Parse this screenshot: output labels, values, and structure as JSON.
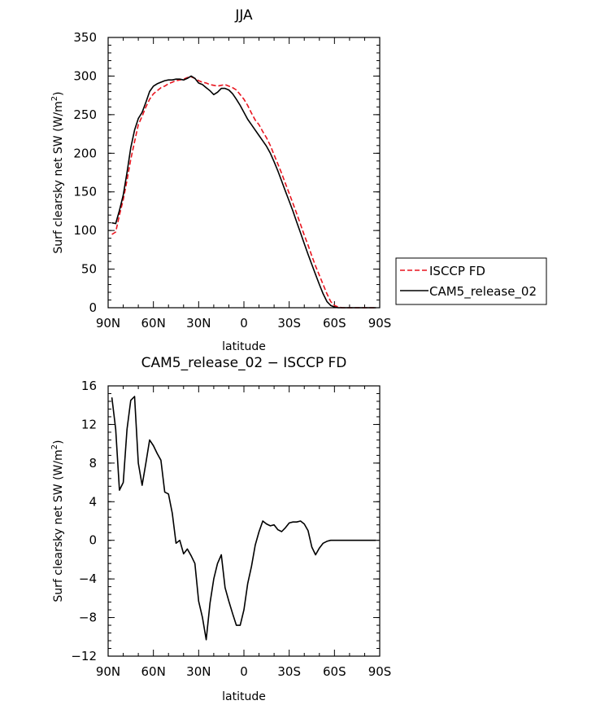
{
  "chart_data": [
    {
      "type": "line",
      "title": "JJA",
      "xlabel": "latitude",
      "ylabel": "Surf clearsky net SW (W/m",
      "ylabel_sup": "2",
      "ylabel_end": ")",
      "xlim": [
        90,
        -90
      ],
      "ylim": [
        0,
        350
      ],
      "xticks": [
        90,
        60,
        30,
        0,
        -30,
        -60,
        -90
      ],
      "xtick_labels": [
        "90N",
        "60N",
        "30N",
        "0",
        "30S",
        "60S",
        "90S"
      ],
      "yticks": [
        0,
        50,
        100,
        150,
        200,
        250,
        300,
        350
      ],
      "ytick_labels": [
        "0",
        "50",
        "100",
        "150",
        "200",
        "250",
        "300",
        "350"
      ],
      "legend_position": "right",
      "series": [
        {
          "name": "ISCCP FD",
          "color": "#e8141e",
          "style": "dashed",
          "x": [
            87.5,
            85,
            82.5,
            80,
            77.5,
            75,
            72.5,
            70,
            67.5,
            65,
            62.5,
            60,
            57.5,
            55,
            52.5,
            50,
            47.5,
            45,
            42.5,
            40,
            37.5,
            35,
            32.5,
            30,
            27.5,
            25,
            22.5,
            20,
            17.5,
            15,
            12.5,
            10,
            7.5,
            5,
            2.5,
            0,
            -2.5,
            -5,
            -7.5,
            -10,
            -12.5,
            -15,
            -17.5,
            -20,
            -22.5,
            -25,
            -27.5,
            -30,
            -32.5,
            -35,
            -37.5,
            -40,
            -42.5,
            -45,
            -47.5,
            -50,
            -52.5,
            -55,
            -57.5,
            -60,
            -62.5,
            -65,
            -67.5,
            -70,
            -72.5,
            -75,
            -77.5,
            -80,
            -82.5,
            -85,
            -87.5
          ],
          "y": [
            95,
            98,
            120,
            140,
            165,
            192,
            215,
            237,
            248,
            260,
            270,
            277,
            281,
            285,
            287,
            290,
            292,
            294,
            295,
            296,
            298,
            299,
            297,
            294,
            292,
            291,
            289,
            288,
            287,
            288,
            289,
            287,
            285,
            282,
            276,
            270,
            262,
            252,
            243,
            237,
            228,
            220,
            210,
            198,
            186,
            174,
            161,
            148,
            135,
            122,
            108,
            94,
            81,
            67,
            54,
            42,
            30,
            18,
            8,
            3,
            1,
            0,
            0,
            0,
            0,
            0,
            0,
            0,
            0,
            0,
            0
          ]
        },
        {
          "name": "CAM5_release_02",
          "color": "#000000",
          "style": "solid",
          "x": [
            87.5,
            85,
            82.5,
            80,
            77.5,
            75,
            72.5,
            70,
            67.5,
            65,
            62.5,
            60,
            57.5,
            55,
            52.5,
            50,
            47.5,
            45,
            42.5,
            40,
            37.5,
            35,
            32.5,
            30,
            27.5,
            25,
            22.5,
            20,
            17.5,
            15,
            12.5,
            10,
            7.5,
            5,
            2.5,
            0,
            -2.5,
            -5,
            -7.5,
            -10,
            -12.5,
            -15,
            -17.5,
            -20,
            -22.5,
            -25,
            -27.5,
            -30,
            -32.5,
            -35,
            -37.5,
            -40,
            -42.5,
            -45,
            -47.5,
            -50,
            -52.5,
            -55,
            -57.5,
            -60,
            -62.5,
            -65,
            -67.5,
            -70,
            -72.5,
            -75,
            -77.5,
            -80,
            -82.5,
            -85,
            -87.5
          ],
          "y": [
            110,
            109,
            126,
            146,
            175,
            207,
            230,
            245,
            253,
            266,
            280,
            287,
            290,
            292,
            294,
            295,
            295,
            296,
            296,
            295,
            297,
            300,
            297,
            291,
            289,
            285,
            281,
            276,
            279,
            284,
            284,
            282,
            277,
            270,
            262,
            253,
            244,
            237,
            230,
            223,
            216,
            209,
            200,
            189,
            177,
            164,
            151,
            138,
            125,
            111,
            97,
            83,
            69,
            56,
            43,
            30,
            18,
            8,
            3,
            1,
            0,
            0,
            0,
            0,
            0,
            0,
            0,
            0,
            0,
            0,
            0
          ]
        }
      ]
    },
    {
      "type": "line",
      "title": "CAM5_release_02 − ISCCP FD",
      "xlabel": "latitude",
      "ylabel": "Surf clearsky net SW (W/m",
      "ylabel_sup": "2",
      "ylabel_end": ")",
      "xlim": [
        90,
        -90
      ],
      "ylim": [
        -12,
        16
      ],
      "xticks": [
        90,
        60,
        30,
        0,
        -30,
        -60,
        -90
      ],
      "xtick_labels": [
        "90N",
        "60N",
        "30N",
        "0",
        "30S",
        "60S",
        "90S"
      ],
      "yticks": [
        -12,
        -8,
        -4,
        0,
        4,
        8,
        12,
        16
      ],
      "ytick_labels": [
        "−12",
        "−8",
        "−4",
        "0",
        "4",
        "8",
        "12",
        "16"
      ],
      "series": [
        {
          "color": "#000000",
          "style": "solid",
          "x": [
            87.5,
            85,
            82.5,
            80,
            77.5,
            75,
            72.5,
            70,
            67.5,
            65,
            62.5,
            60,
            57.5,
            55,
            52.5,
            50,
            47.5,
            45,
            42.5,
            40,
            37.5,
            35,
            32.5,
            30,
            27.5,
            25,
            22.5,
            20,
            17.5,
            15,
            12.5,
            10,
            7.5,
            5,
            2.5,
            0,
            -2.5,
            -5,
            -7.5,
            -10,
            -12.5,
            -15,
            -17.5,
            -20,
            -22.5,
            -25,
            -27.5,
            -30,
            -32.5,
            -35,
            -37.5,
            -40,
            -42.5,
            -45,
            -47.5,
            -50,
            -52.5,
            -55,
            -57.5,
            -60,
            -62.5,
            -65,
            -67.5,
            -70,
            -72.5,
            -75,
            -77.5,
            -80,
            -82.5,
            -85,
            -87.5
          ],
          "y": [
            14.8,
            11.5,
            5.2,
            6.0,
            11.5,
            14.5,
            14.9,
            8.0,
            5.7,
            8.0,
            10.4,
            9.8,
            9.0,
            8.3,
            5.0,
            4.8,
            2.8,
            -0.3,
            0.0,
            -1.4,
            -0.9,
            -1.6,
            -2.4,
            -6.3,
            -8.0,
            -10.3,
            -6.5,
            -4.0,
            -2.4,
            -1.5,
            -4.9,
            -6.3,
            -7.6,
            -8.8,
            -8.8,
            -7.2,
            -4.5,
            -2.7,
            -0.5,
            0.9,
            2.0,
            1.7,
            1.5,
            1.6,
            1.1,
            0.9,
            1.3,
            1.8,
            1.9,
            1.9,
            2.0,
            1.7,
            1.0,
            -0.7,
            -1.5,
            -0.8,
            -0.3,
            -0.1,
            0.0,
            0.0,
            0.0,
            0.0,
            0.0,
            0.0,
            0.0,
            0.0,
            0.0,
            0.0,
            0.0,
            0.0,
            0.0
          ]
        }
      ]
    }
  ]
}
